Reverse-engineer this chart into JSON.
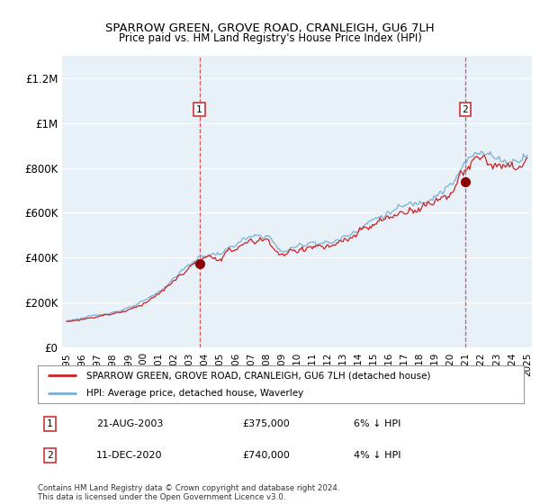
{
  "title": "SPARROW GREEN, GROVE ROAD, CRANLEIGH, GU6 7LH",
  "subtitle": "Price paid vs. HM Land Registry's House Price Index (HPI)",
  "footer": "Contains HM Land Registry data © Crown copyright and database right 2024.\nThis data is licensed under the Open Government Licence v3.0.",
  "legend_line1": "SPARROW GREEN, GROVE ROAD, CRANLEIGH, GU6 7LH (detached house)",
  "legend_line2": "HPI: Average price, detached house, Waverley",
  "sale1_label": "1",
  "sale1_date": "21-AUG-2003",
  "sale1_price": "£375,000",
  "sale1_pct": "6% ↓ HPI",
  "sale1_year": 2003.64,
  "sale1_value": 375000,
  "sale2_label": "2",
  "sale2_date": "11-DEC-2020",
  "sale2_price": "£740,000",
  "sale2_pct": "4% ↓ HPI",
  "sale2_year": 2020.95,
  "sale2_value": 740000,
  "hpi_color": "#7ab0d4",
  "price_color": "#cc2222",
  "marker_color": "#8b0000",
  "dashed_color": "#cc3333",
  "background_color": "#ffffff",
  "plot_bg_color": "#e8f0f8",
  "grid_color": "#ffffff",
  "ylim": [
    0,
    1300000
  ],
  "yticks": [
    0,
    200000,
    400000,
    600000,
    800000,
    1000000,
    1200000
  ],
  "ytick_labels": [
    "£0",
    "£200K",
    "£400K",
    "£600K",
    "£800K",
    "£1M",
    "£1.2M"
  ],
  "xlim_start": 1994.7,
  "xlim_end": 2025.3
}
